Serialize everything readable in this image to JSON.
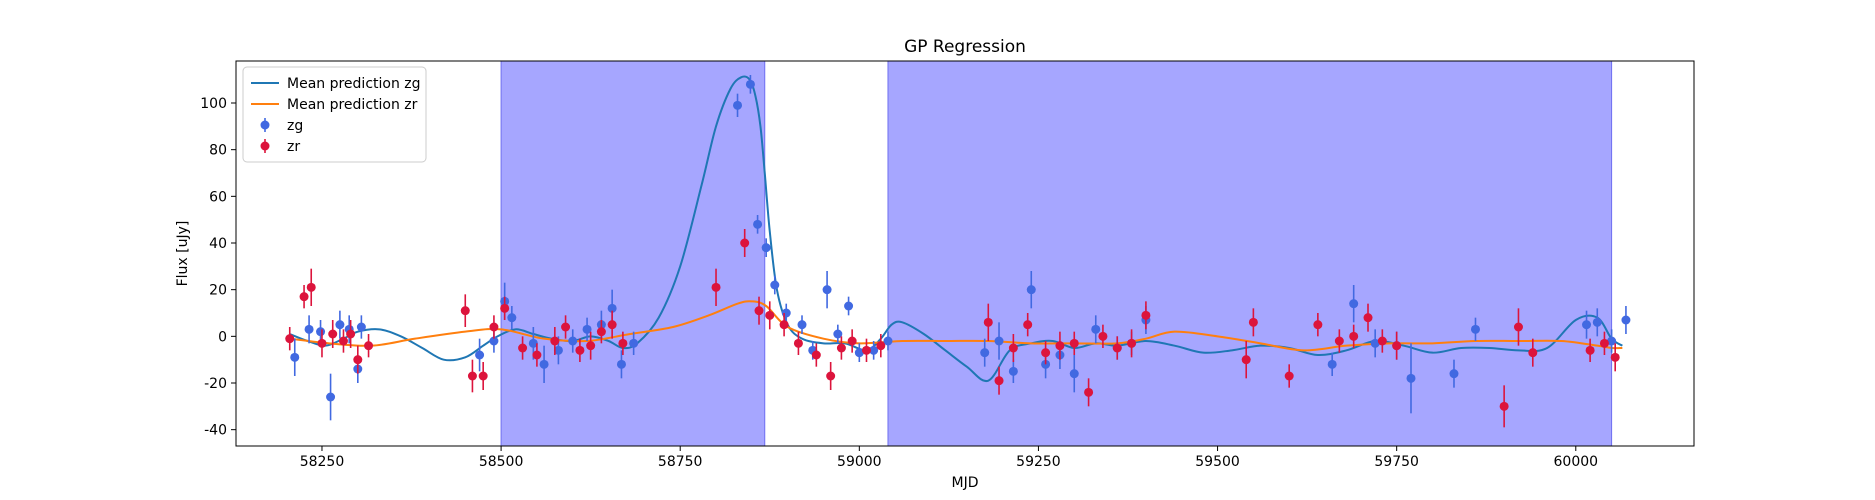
{
  "chart_data": {
    "type": "scatter",
    "title": "GP Regression",
    "xlabel": "MJD",
    "ylabel": "Flux [uJy]",
    "xlim": [
      58130,
      60165
    ],
    "ylim": [
      -47,
      118
    ],
    "x_ticks": [
      58250,
      58500,
      58750,
      59000,
      59250,
      59500,
      59750,
      60000
    ],
    "y_ticks": [
      -40,
      -20,
      0,
      20,
      40,
      60,
      80,
      100
    ],
    "grid": false,
    "legend_position": "top-left",
    "shaded_regions": [
      {
        "x_start": 58500,
        "x_end": 58868,
        "color": "#a6a6ff"
      },
      {
        "x_start": 59040,
        "x_end": 60050,
        "color": "#a6a6ff"
      }
    ],
    "series": [
      {
        "name": "Mean prediction zg",
        "kind": "line",
        "color": "#1f77b4",
        "x": [
          58205,
          58230,
          58255,
          58280,
          58300,
          58330,
          58360,
          58390,
          58420,
          58450,
          58475,
          58495,
          58520,
          58545,
          58570,
          58600,
          58625,
          58650,
          58670,
          58690,
          58720,
          58750,
          58780,
          58800,
          58820,
          58835,
          58847,
          58855,
          58862,
          58868,
          58875,
          58885,
          58900,
          58920,
          58950,
          58980,
          59010,
          59030,
          59045,
          59060,
          59090,
          59120,
          59150,
          59180,
          59210,
          59240,
          59270,
          59300,
          59330,
          59360,
          59400,
          59440,
          59480,
          59520,
          59560,
          59600,
          59640,
          59680,
          59720,
          59760,
          59800,
          59840,
          59880,
          59920,
          59960,
          60000,
          60030,
          60050,
          60065
        ],
        "y": [
          1,
          -2,
          -4,
          -1,
          2,
          3,
          0,
          -5,
          -10,
          -9,
          -4,
          0,
          3,
          1,
          -1,
          -2,
          0,
          -2,
          -5,
          -3,
          8,
          30,
          65,
          90,
          106,
          111,
          110,
          103,
          90,
          70,
          45,
          20,
          5,
          -1,
          -3,
          -3,
          -6,
          -1,
          5,
          6,
          1,
          -6,
          -13,
          -19,
          -6,
          -3,
          -2,
          -5,
          -3,
          -4,
          -2,
          -4,
          -7,
          -6,
          -4,
          -5,
          -8,
          -6,
          -2,
          -4,
          -7,
          -5,
          -5,
          -6,
          -5,
          7,
          8,
          -1,
          -4
        ]
      },
      {
        "name": "Mean prediction zr",
        "kind": "line",
        "color": "#ff7f0e",
        "x": [
          58205,
          58260,
          58320,
          58380,
          58450,
          58500,
          58560,
          58620,
          58680,
          58740,
          58790,
          58830,
          58850,
          58870,
          58900,
          58950,
          59000,
          59060,
          59120,
          59180,
          59240,
          59300,
          59360,
          59400,
          59440,
          59500,
          59560,
          59620,
          59680,
          59740,
          59800,
          59860,
          59920,
          59980,
          60030,
          60050,
          60065
        ],
        "y": [
          -1,
          -3,
          -4,
          -1,
          2,
          3,
          -1,
          -2,
          1,
          4,
          9,
          14,
          15,
          13,
          4,
          -1,
          -3,
          -2,
          -2,
          -2,
          -3,
          -3,
          -3,
          -1,
          2,
          0,
          -3,
          -6,
          -4,
          -3,
          -3,
          -2,
          -2,
          -2,
          -4,
          -5,
          -5
        ]
      },
      {
        "name": "zg",
        "kind": "errorbar",
        "color": "#4169e1",
        "x": [
          58212,
          58232,
          58248,
          58262,
          58275,
          58288,
          58300,
          58305,
          58470,
          58490,
          58505,
          58515,
          58545,
          58560,
          58580,
          58600,
          58620,
          58640,
          58655,
          58668,
          58685,
          58830,
          58848,
          58858,
          58870,
          58882,
          58898,
          58920,
          58935,
          58955,
          58970,
          58985,
          59000,
          59020,
          59040,
          59175,
          59195,
          59215,
          59240,
          59260,
          59280,
          59300,
          59330,
          59360,
          59380,
          59400,
          59660,
          59690,
          59720,
          59750,
          59770,
          59830,
          59860,
          60015,
          60030,
          60050,
          60070
        ],
        "y": [
          -9,
          3,
          2,
          -26,
          5,
          3,
          -14,
          4,
          -8,
          -2,
          15,
          8,
          -3,
          -12,
          -6,
          -2,
          3,
          5,
          12,
          -12,
          -3,
          99,
          108,
          48,
          38,
          22,
          10,
          5,
          -6,
          20,
          1,
          13,
          -7,
          -6,
          -2,
          -7,
          -2,
          -15,
          20,
          -12,
          -8,
          -16,
          3,
          -5,
          -3,
          7,
          -12,
          14,
          -3,
          -4,
          -18,
          -16,
          3,
          5,
          6,
          -2,
          7
        ],
        "err": [
          8,
          6,
          5,
          10,
          6,
          6,
          6,
          5,
          7,
          5,
          8,
          5,
          7,
          8,
          6,
          5,
          5,
          6,
          8,
          6,
          5,
          5,
          4,
          4,
          4,
          4,
          4,
          4,
          4,
          8,
          4,
          4,
          4,
          4,
          4,
          6,
          8,
          5,
          8,
          6,
          6,
          8,
          6,
          5,
          5,
          6,
          5,
          8,
          6,
          6,
          15,
          6,
          5,
          6,
          6,
          5,
          6
        ]
      },
      {
        "name": "zr",
        "kind": "errorbar",
        "color": "#dc143c",
        "x": [
          58205,
          58225,
          58235,
          58250,
          58265,
          58280,
          58290,
          58300,
          58315,
          58450,
          58460,
          58475,
          58490,
          58505,
          58530,
          58550,
          58575,
          58590,
          58610,
          58625,
          58640,
          58655,
          58670,
          58800,
          58840,
          58860,
          58875,
          58895,
          58915,
          58940,
          58960,
          58975,
          58990,
          59010,
          59030,
          59180,
          59195,
          59215,
          59235,
          59260,
          59280,
          59300,
          59320,
          59340,
          59360,
          59380,
          59400,
          59540,
          59550,
          59600,
          59640,
          59670,
          59690,
          59710,
          59730,
          59750,
          59900,
          59920,
          59940,
          60020,
          60040,
          60055
        ],
        "y": [
          -1,
          17,
          21,
          -3,
          1,
          -2,
          1,
          -10,
          -4,
          11,
          -17,
          -17,
          4,
          12,
          -5,
          -8,
          -2,
          4,
          -6,
          -4,
          2,
          5,
          -3,
          21,
          40,
          11,
          9,
          5,
          -3,
          -8,
          -17,
          -5,
          -2,
          -6,
          -4,
          6,
          -19,
          -5,
          5,
          -7,
          -4,
          -3,
          -24,
          0,
          -5,
          -3,
          9,
          -10,
          6,
          -17,
          5,
          -2,
          0,
          8,
          -2,
          -4,
          -30,
          4,
          -7,
          -6,
          -3,
          -9
        ],
        "err": [
          5,
          5,
          8,
          6,
          6,
          5,
          6,
          6,
          5,
          7,
          7,
          6,
          5,
          5,
          5,
          5,
          6,
          5,
          5,
          6,
          5,
          6,
          5,
          8,
          6,
          6,
          6,
          5,
          5,
          5,
          6,
          5,
          5,
          5,
          5,
          8,
          6,
          6,
          5,
          5,
          6,
          5,
          6,
          5,
          5,
          6,
          6,
          8,
          6,
          5,
          5,
          5,
          5,
          6,
          5,
          6,
          9,
          8,
          6,
          5,
          5,
          6
        ]
      }
    ]
  }
}
